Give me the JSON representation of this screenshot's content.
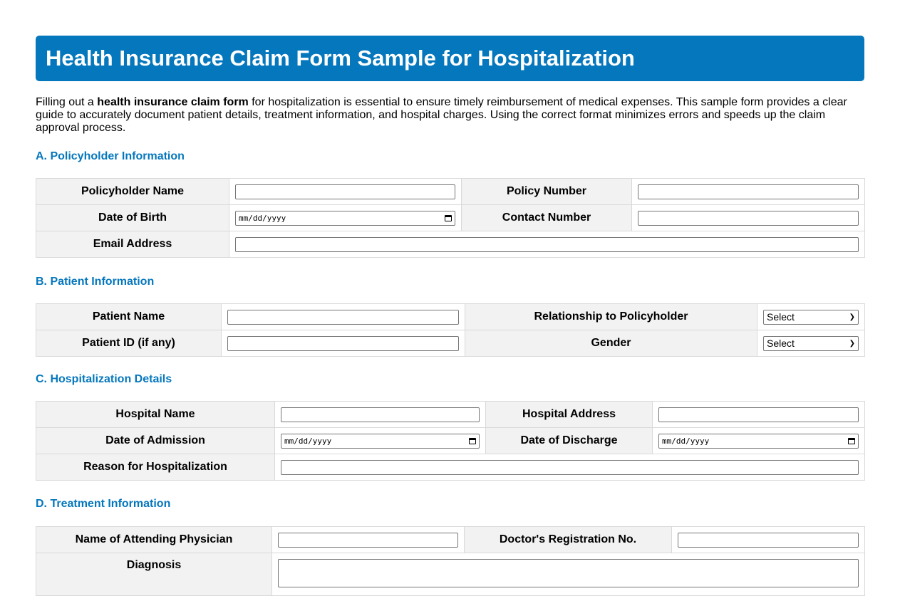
{
  "title": "Health Insurance Claim Form Sample for Hospitalization",
  "intro": {
    "before": "Filling out a ",
    "bold": "health insurance claim form",
    "after": " for hospitalization is essential to ensure timely reimbursement of medical expenses. This sample form provides a clear guide to accurately document patient details, treatment information, and hospital charges. Using the correct format minimizes errors and speeds up the claim approval process."
  },
  "date_placeholder": "mm/dd/yyyy",
  "select_default": "Select",
  "sections": {
    "a": {
      "heading": "A. Policyholder Information",
      "policyholder_name": "Policyholder Name",
      "policy_number": "Policy Number",
      "dob": "Date of Birth",
      "contact": "Contact Number",
      "email": "Email Address"
    },
    "b": {
      "heading": "B. Patient Information",
      "patient_name": "Patient Name",
      "relationship": "Relationship to Policyholder",
      "patient_id": "Patient ID (if any)",
      "gender": "Gender"
    },
    "c": {
      "heading": "C. Hospitalization Details",
      "hospital_name": "Hospital Name",
      "hospital_address": "Hospital Address",
      "admission": "Date of Admission",
      "discharge": "Date of Discharge",
      "reason": "Reason for Hospitalization"
    },
    "d": {
      "heading": "D. Treatment Information",
      "physician": "Name of Attending Physician",
      "registration": "Doctor's Registration No.",
      "diagnosis": "Diagnosis"
    }
  }
}
